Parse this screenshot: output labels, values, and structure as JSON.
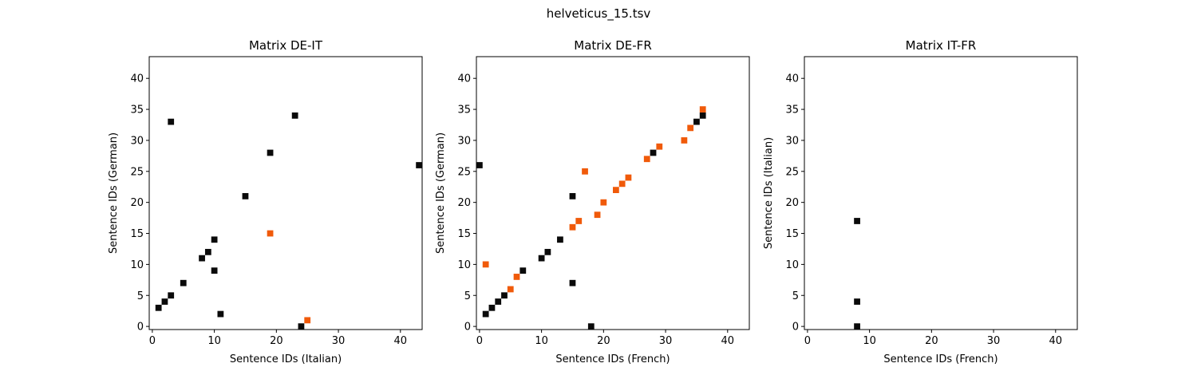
{
  "figure": {
    "title": "helveticus_15.tsv"
  },
  "chart_data": [
    {
      "type": "heatmap",
      "title": "Matrix DE-IT",
      "xlabel": "Sentence IDs (Italian)",
      "ylabel": "Sentence IDs (German)",
      "xlim": [
        -0.5,
        43.5
      ],
      "ylim": [
        43.5,
        -0.5
      ],
      "xticks": [
        0,
        10,
        20,
        30,
        40
      ],
      "yticks": [
        0,
        5,
        10,
        15,
        20,
        25,
        30,
        35,
        40
      ],
      "colors": {
        "black": "#0a0a0a",
        "orange": "#f05a0a"
      },
      "cells": [
        {
          "x": 24,
          "y": 0,
          "color": "black"
        },
        {
          "x": 25,
          "y": 1,
          "color": "orange"
        },
        {
          "x": 11,
          "y": 2,
          "color": "black"
        },
        {
          "x": 1,
          "y": 3,
          "color": "black"
        },
        {
          "x": 2,
          "y": 4,
          "color": "black"
        },
        {
          "x": 3,
          "y": 5,
          "color": "black"
        },
        {
          "x": 5,
          "y": 7,
          "color": "black"
        },
        {
          "x": 10,
          "y": 9,
          "color": "black"
        },
        {
          "x": 8,
          "y": 11,
          "color": "black"
        },
        {
          "x": 9,
          "y": 12,
          "color": "black"
        },
        {
          "x": 10,
          "y": 14,
          "color": "black"
        },
        {
          "x": 19,
          "y": 15,
          "color": "orange"
        },
        {
          "x": 15,
          "y": 21,
          "color": "black"
        },
        {
          "x": 43,
          "y": 26,
          "color": "black"
        },
        {
          "x": 19,
          "y": 28,
          "color": "black"
        },
        {
          "x": 3,
          "y": 33,
          "color": "black"
        },
        {
          "x": 23,
          "y": 34,
          "color": "black"
        }
      ]
    },
    {
      "type": "heatmap",
      "title": "Matrix DE-FR",
      "xlabel": "Sentence IDs (French)",
      "ylabel": "Sentence IDs (German)",
      "xlim": [
        -0.5,
        43.5
      ],
      "ylim": [
        43.5,
        -0.5
      ],
      "xticks": [
        0,
        10,
        20,
        30,
        40
      ],
      "yticks": [
        0,
        5,
        10,
        15,
        20,
        25,
        30,
        35,
        40
      ],
      "colors": {
        "black": "#0a0a0a",
        "orange": "#f05a0a"
      },
      "cells": [
        {
          "x": 18,
          "y": 0,
          "color": "black"
        },
        {
          "x": 1,
          "y": 2,
          "color": "black"
        },
        {
          "x": 2,
          "y": 3,
          "color": "black"
        },
        {
          "x": 3,
          "y": 4,
          "color": "black"
        },
        {
          "x": 4,
          "y": 5,
          "color": "black"
        },
        {
          "x": 5,
          "y": 6,
          "color": "orange"
        },
        {
          "x": 15,
          "y": 7,
          "color": "black"
        },
        {
          "x": 6,
          "y": 8,
          "color": "orange"
        },
        {
          "x": 7,
          "y": 9,
          "color": "black"
        },
        {
          "x": 1,
          "y": 10,
          "color": "orange"
        },
        {
          "x": 10,
          "y": 11,
          "color": "black"
        },
        {
          "x": 11,
          "y": 12,
          "color": "black"
        },
        {
          "x": 13,
          "y": 14,
          "color": "black"
        },
        {
          "x": 15,
          "y": 16,
          "color": "orange"
        },
        {
          "x": 16,
          "y": 17,
          "color": "orange"
        },
        {
          "x": 19,
          "y": 18,
          "color": "orange"
        },
        {
          "x": 20,
          "y": 20,
          "color": "orange"
        },
        {
          "x": 15,
          "y": 21,
          "color": "black"
        },
        {
          "x": 22,
          "y": 22,
          "color": "orange"
        },
        {
          "x": 23,
          "y": 23,
          "color": "orange"
        },
        {
          "x": 24,
          "y": 24,
          "color": "orange"
        },
        {
          "x": 17,
          "y": 25,
          "color": "orange"
        },
        {
          "x": 0,
          "y": 26,
          "color": "black"
        },
        {
          "x": 27,
          "y": 27,
          "color": "orange"
        },
        {
          "x": 28,
          "y": 28,
          "color": "black"
        },
        {
          "x": 29,
          "y": 29,
          "color": "orange"
        },
        {
          "x": 33,
          "y": 30,
          "color": "orange"
        },
        {
          "x": 34,
          "y": 32,
          "color": "orange"
        },
        {
          "x": 35,
          "y": 33,
          "color": "black"
        },
        {
          "x": 36,
          "y": 34,
          "color": "black"
        },
        {
          "x": 36,
          "y": 35,
          "color": "orange"
        }
      ]
    },
    {
      "type": "heatmap",
      "title": "Matrix IT-FR",
      "xlabel": "Sentence IDs (French)",
      "ylabel": "Sentence IDs (Italian)",
      "xlim": [
        -0.5,
        43.5
      ],
      "ylim": [
        43.5,
        -0.5
      ],
      "xticks": [
        0,
        10,
        20,
        30,
        40
      ],
      "yticks": [
        0,
        5,
        10,
        15,
        20,
        25,
        30,
        35,
        40
      ],
      "colors": {
        "black": "#0a0a0a",
        "orange": "#f05a0a"
      },
      "cells": [
        {
          "x": 8,
          "y": 0,
          "color": "black"
        },
        {
          "x": 8,
          "y": 4,
          "color": "black"
        },
        {
          "x": 8,
          "y": 17,
          "color": "black"
        }
      ]
    }
  ]
}
